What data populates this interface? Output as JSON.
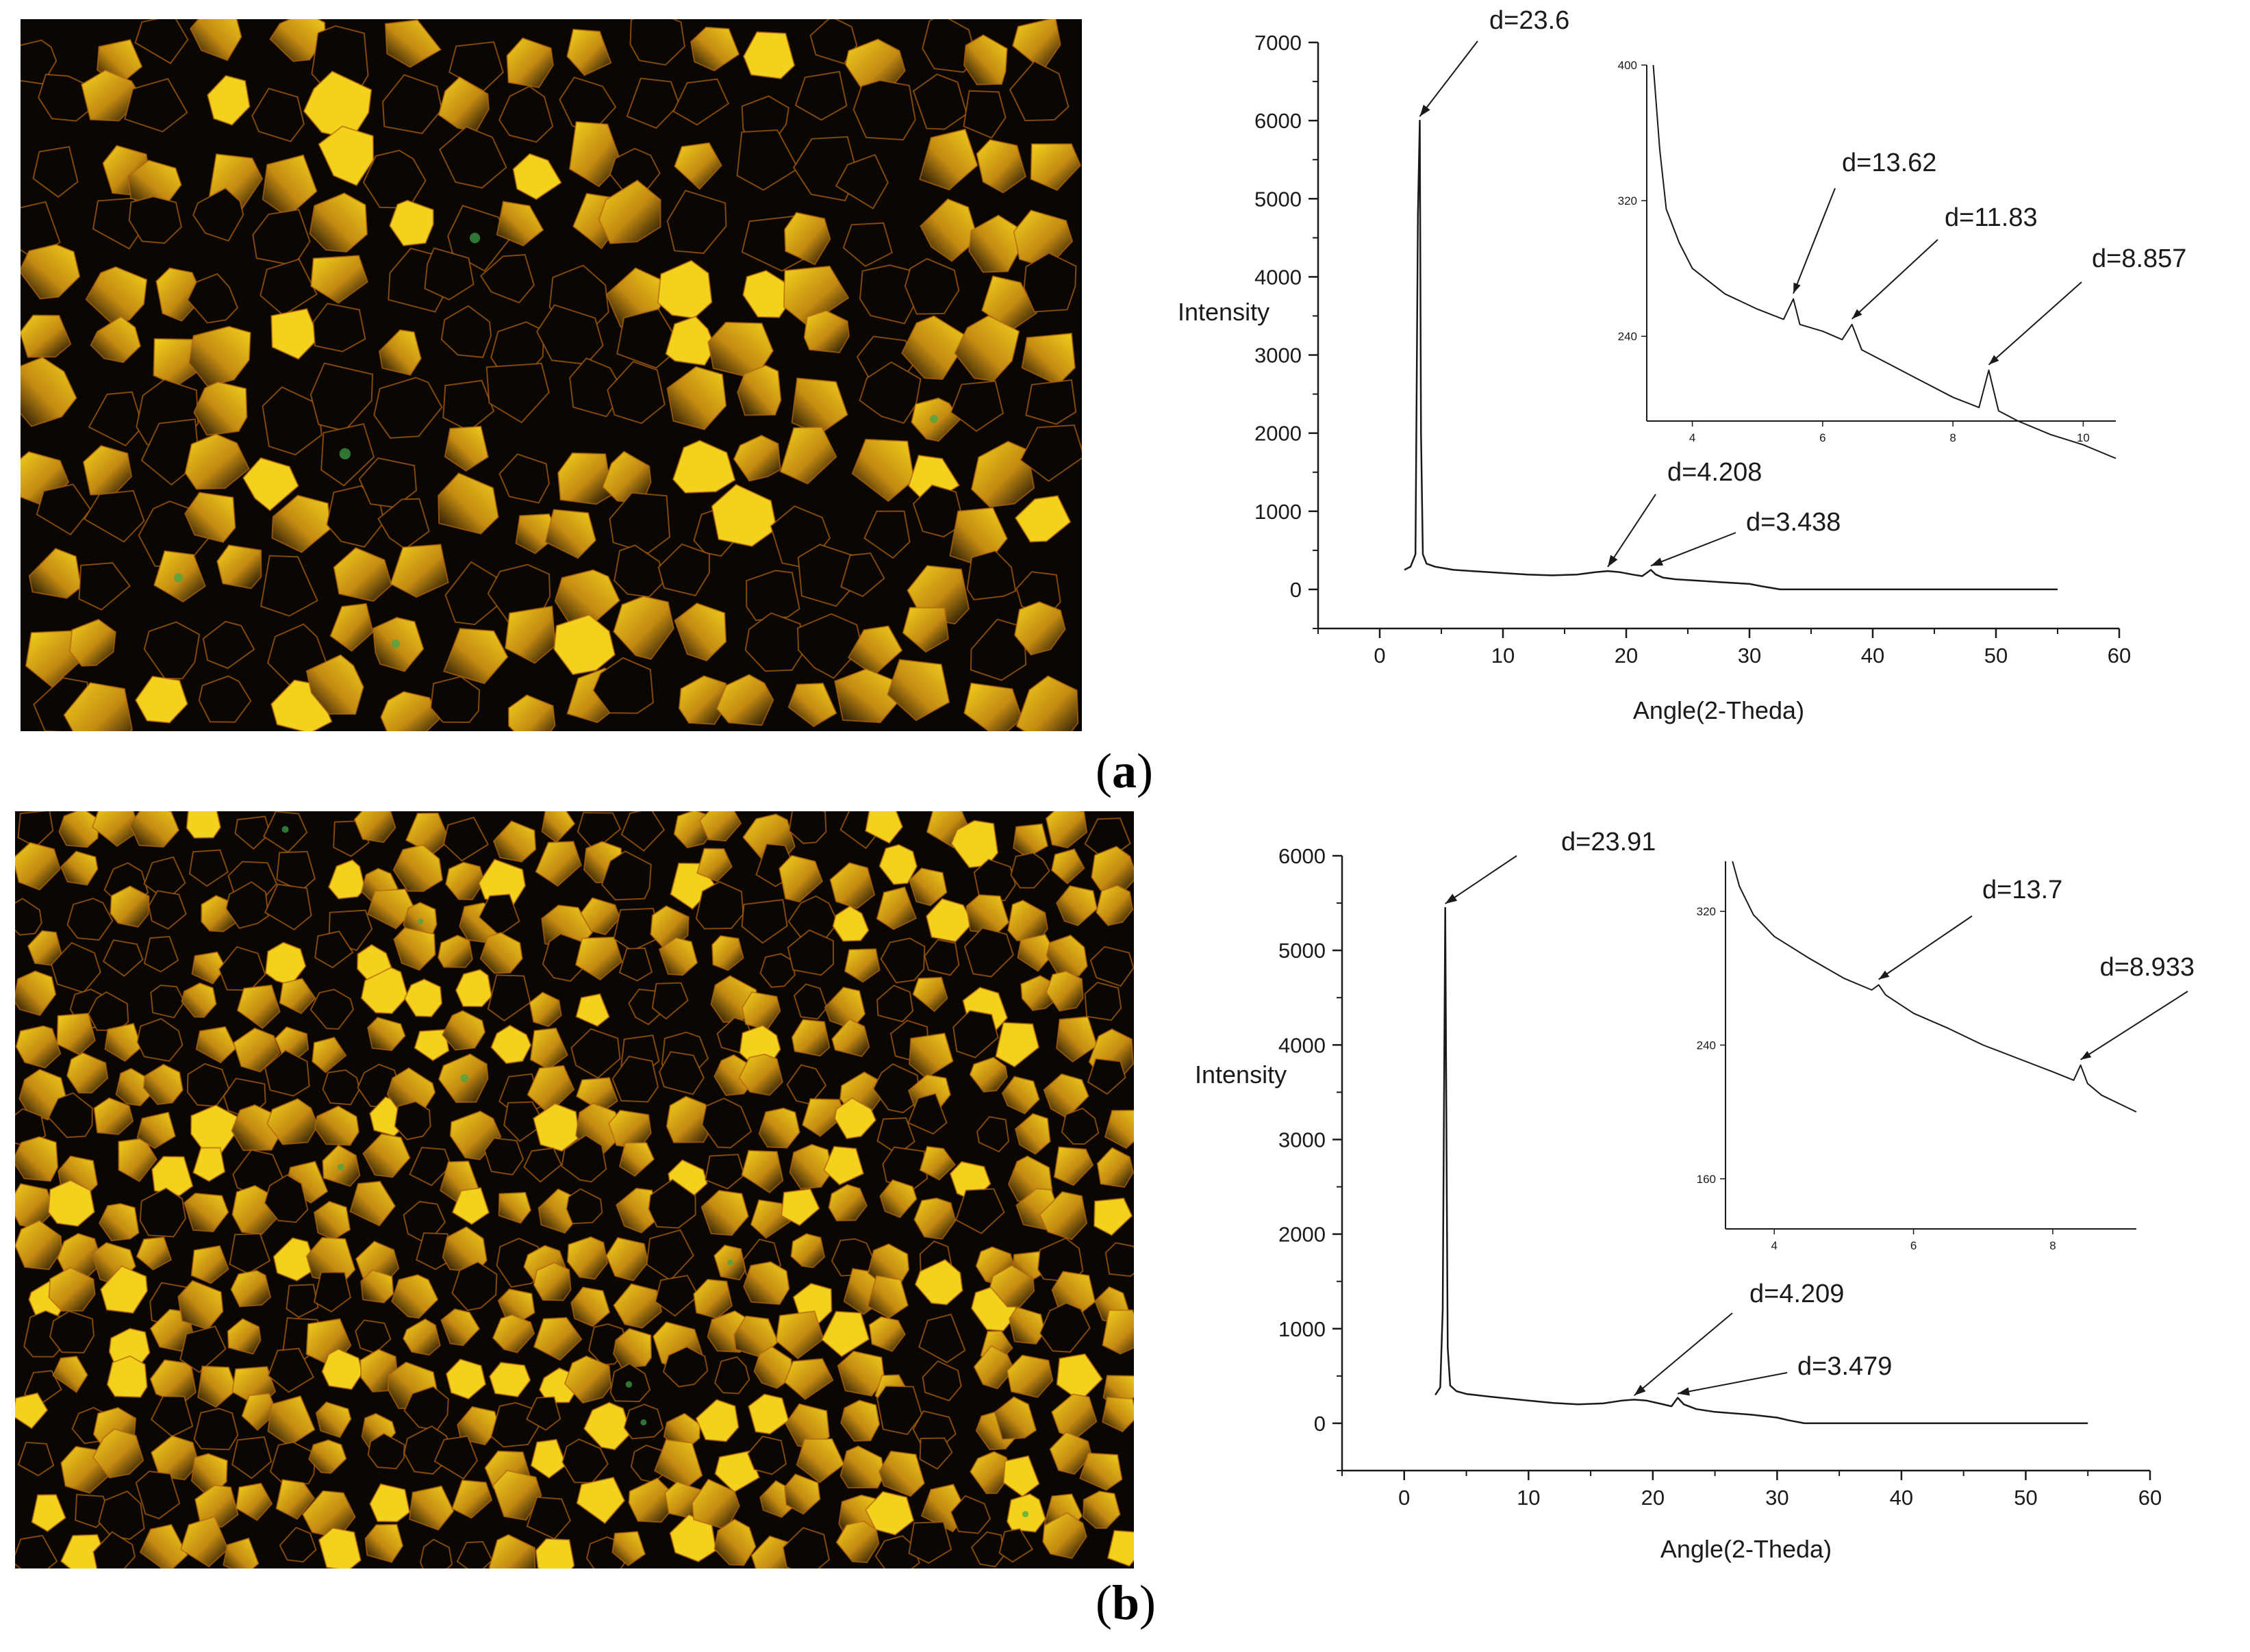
{
  "panels": [
    {
      "label_open": "(",
      "label_letter": "a",
      "label_close": ")"
    },
    {
      "label_open": "(",
      "label_letter": "b",
      "label_close": ")"
    }
  ],
  "colors": {
    "grain_light": "#f2d21c",
    "grain_mid": "#c48a12",
    "grain_dark": "#0a0603",
    "green_tint": "#3fa64a",
    "line": "#1a1a1a"
  },
  "chart_data": [
    {
      "panel": "a",
      "type": "line",
      "xlabel": "Angle(2-Theda)",
      "ylabel": "Intensity",
      "xlim": [
        -5,
        60
      ],
      "ylim": [
        -500,
        7000
      ],
      "xticks": [
        0,
        10,
        20,
        30,
        40,
        50,
        60
      ],
      "yticks": [
        0,
        1000,
        2000,
        3000,
        4000,
        5000,
        6000,
        7000
      ],
      "series": [
        {
          "x": [
            2.0,
            2.5,
            2.9,
            3.1,
            3.25,
            3.35,
            3.5,
            3.8,
            4.5,
            6,
            8,
            10,
            12,
            14,
            16,
            17.5,
            18.5,
            19.5,
            20.5,
            21.3,
            22.0,
            22.4,
            23.0,
            24,
            26,
            28,
            30,
            31,
            32.5,
            40,
            50,
            55
          ],
          "y": [
            250,
            290,
            450,
            4800,
            6000,
            2000,
            450,
            330,
            290,
            250,
            230,
            210,
            190,
            180,
            190,
            220,
            235,
            220,
            190,
            170,
            250,
            190,
            150,
            130,
            110,
            90,
            70,
            40,
            0,
            0,
            0,
            0
          ]
        }
      ],
      "annotations": [
        {
          "text": "d=23.6",
          "x": 3.25,
          "y": 6000
        },
        {
          "text": "d=4.208",
          "x": 18.5,
          "y": 235
        },
        {
          "text": "d=3.438",
          "x": 22.0,
          "y": 250
        }
      ],
      "inset": {
        "xlim": [
          3.3,
          10.5
        ],
        "ylim": [
          190,
          400
        ],
        "xticks": [
          4,
          6,
          8,
          10
        ],
        "yticks": [
          240,
          320,
          400
        ],
        "series": [
          {
            "x": [
              3.4,
              3.5,
              3.6,
              3.8,
              4.0,
              4.5,
              5.0,
              5.4,
              5.55,
              5.65,
              6.0,
              6.3,
              6.45,
              6.6,
              7.0,
              7.5,
              8.0,
              8.4,
              8.55,
              8.7,
              9.0,
              9.5,
              10.0,
              10.5
            ],
            "y": [
              400,
              350,
              315,
              295,
              280,
              265,
              256,
              250,
              262,
              247,
              243,
              238,
              247,
              232,
              224,
              214,
              204,
              198,
              220,
              196,
              190,
              182,
              176,
              168
            ]
          }
        ],
        "annotations": [
          {
            "text": "d=13.62",
            "x": 5.55,
            "y": 262
          },
          {
            "text": "d=11.83",
            "x": 6.45,
            "y": 247
          },
          {
            "text": "d=8.857",
            "x": 8.55,
            "y": 220
          }
        ]
      }
    },
    {
      "panel": "b",
      "type": "line",
      "xlabel": "Angle(2-Theda)",
      "ylabel": "Intensity",
      "xlim": [
        -5,
        60
      ],
      "ylim": [
        -500,
        6000
      ],
      "xticks": [
        0,
        10,
        20,
        30,
        40,
        50,
        60
      ],
      "yticks": [
        0,
        1000,
        2000,
        3000,
        4000,
        5000,
        6000
      ],
      "series": [
        {
          "x": [
            2.5,
            2.9,
            3.1,
            3.3,
            3.4,
            3.5,
            3.7,
            4.2,
            5,
            7,
            10,
            12,
            14,
            16,
            17.5,
            18.5,
            19.5,
            20.5,
            21.5,
            22.0,
            22.5,
            23.5,
            25,
            28,
            30,
            31,
            32.2,
            40,
            50,
            55
          ],
          "y": [
            300,
            380,
            1200,
            5450,
            3000,
            800,
            400,
            340,
            310,
            280,
            240,
            215,
            200,
            210,
            240,
            250,
            240,
            210,
            180,
            270,
            200,
            150,
            120,
            90,
            60,
            30,
            0,
            0,
            0,
            0
          ]
        }
      ],
      "annotations": [
        {
          "text": "d=23.91",
          "x": 3.3,
          "y": 5450
        },
        {
          "text": "d=4.209",
          "x": 18.5,
          "y": 250
        },
        {
          "text": "d=3.479",
          "x": 22.0,
          "y": 270
        }
      ],
      "inset": {
        "xlim": [
          3.3,
          9.2
        ],
        "ylim": [
          130,
          350
        ],
        "xticks": [
          4,
          6,
          8
        ],
        "yticks": [
          160,
          240,
          320
        ],
        "series": [
          {
            "x": [
              3.4,
              3.5,
              3.7,
              4.0,
              4.5,
              5.0,
              5.4,
              5.5,
              5.6,
              6.0,
              6.5,
              7.0,
              7.5,
              8.0,
              8.3,
              8.4,
              8.5,
              8.7,
              9.0,
              9.2
            ],
            "y": [
              350,
              335,
              318,
              305,
              292,
              280,
              273,
              276,
              270,
              259,
              250,
              240,
              232,
              224,
              219,
              228,
              217,
              210,
              204,
              200
            ]
          }
        ],
        "annotations": [
          {
            "text": "d=13.7",
            "x": 5.5,
            "y": 276
          },
          {
            "text": "d=8.933",
            "x": 8.4,
            "y": 228
          }
        ]
      }
    }
  ]
}
